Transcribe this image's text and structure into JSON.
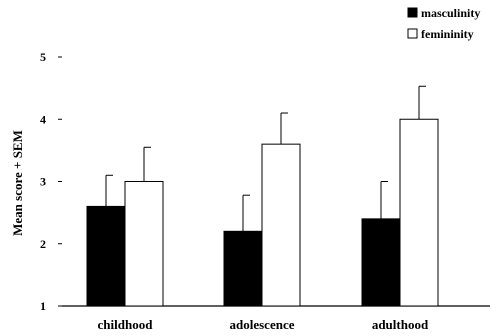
{
  "chart_data": {
    "type": "bar",
    "title": "",
    "xlabel": "",
    "ylabel": "Mean score + SEM",
    "ylim": [
      1,
      5
    ],
    "yticks": [
      1,
      2,
      3,
      4,
      5
    ],
    "categories": [
      "childhood",
      "adolescence",
      "adulthood"
    ],
    "series": [
      {
        "name": "masculinity",
        "color": "#000000",
        "values": [
          2.6,
          2.2,
          2.4
        ],
        "sem": [
          0.5,
          0.58,
          0.6
        ]
      },
      {
        "name": "femininity",
        "color": "#ffffff",
        "values": [
          3.0,
          3.6,
          4.0
        ],
        "sem": [
          0.55,
          0.5,
          0.53
        ]
      }
    ],
    "legend": "top-right",
    "grid": false,
    "error_bars": "upper"
  }
}
